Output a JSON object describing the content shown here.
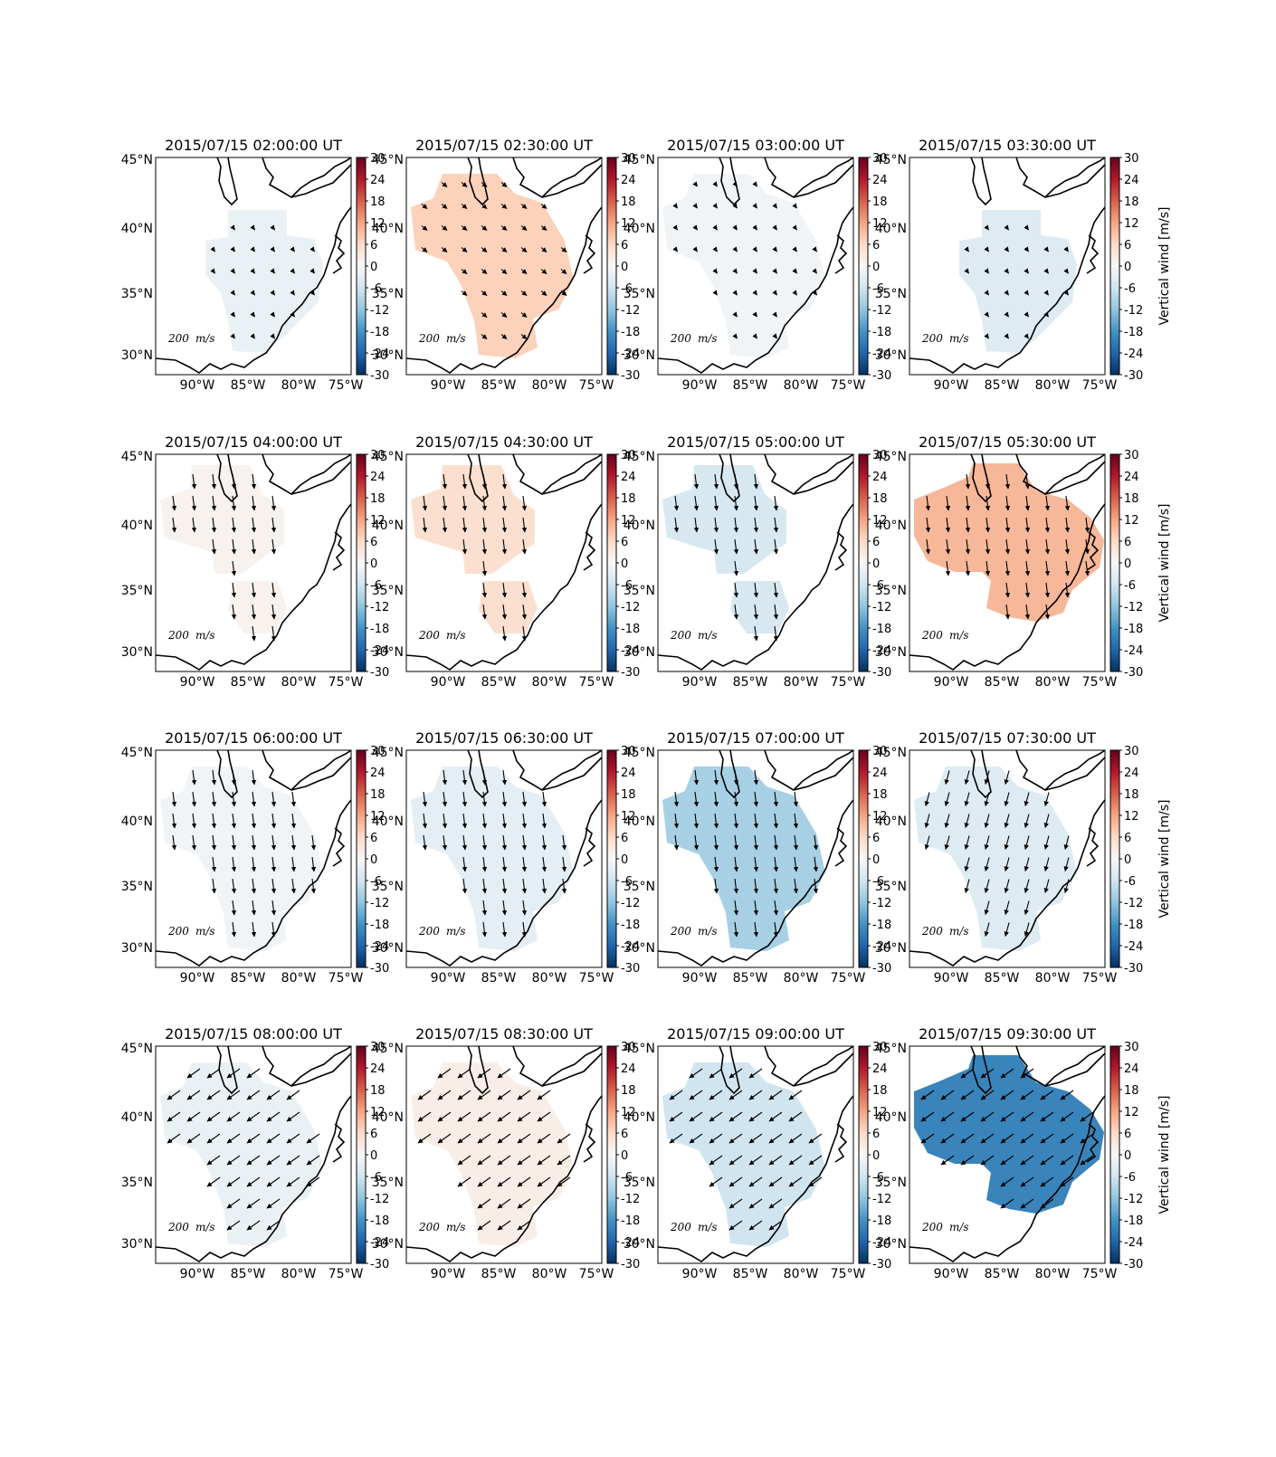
{
  "figure": {
    "colorbar_label": "Vertical wind [m/s]",
    "colorbar_ticks": [
      30,
      24,
      18,
      12,
      6,
      0,
      -6,
      -12,
      -18,
      -24,
      -30
    ],
    "lat_labels": [
      "45°N",
      "40°N",
      "35°N",
      "30°N"
    ],
    "lon_labels": [
      "90°W",
      "85°W",
      "80°W",
      "75°W"
    ],
    "scale_label": "200",
    "scale_unit": "m/s",
    "colormap": [
      "#053061",
      "#2166ac",
      "#4393c3",
      "#92c5de",
      "#d1e5f0",
      "#f7f7f7",
      "#fddbc7",
      "#f4a582",
      "#d6604d",
      "#b2182b",
      "#67001f"
    ]
  },
  "panels": [
    {
      "title": "2015/07/15 02:00:00 UT",
      "value": -2,
      "region": "tall",
      "arrow": "small"
    },
    {
      "title": "2015/07/15 02:30:00 UT",
      "value": 7,
      "region": "big",
      "arrow": "med"
    },
    {
      "title": "2015/07/15 03:00:00 UT",
      "value": -1,
      "region": "big",
      "arrow": "small"
    },
    {
      "title": "2015/07/15 03:30:00 UT",
      "value": -4,
      "region": "tall",
      "arrow": "small"
    },
    {
      "title": "2015/07/15 04:00:00 UT",
      "value": 1,
      "region": "split",
      "arrow": "down"
    },
    {
      "title": "2015/07/15 04:30:00 UT",
      "value": 5,
      "region": "split",
      "arrow": "down"
    },
    {
      "title": "2015/07/15 05:00:00 UT",
      "value": -5,
      "region": "split",
      "arrow": "down"
    },
    {
      "title": "2015/07/15 05:30:00 UT",
      "value": 10,
      "region": "wide",
      "arrow": "down"
    },
    {
      "title": "2015/07/15 06:00:00 UT",
      "value": -1,
      "region": "big",
      "arrow": "down"
    },
    {
      "title": "2015/07/15 06:30:00 UT",
      "value": -3,
      "region": "big",
      "arrow": "down"
    },
    {
      "title": "2015/07/15 07:00:00 UT",
      "value": -10,
      "region": "big",
      "arrow": "down"
    },
    {
      "title": "2015/07/15 07:30:00 UT",
      "value": -4,
      "region": "big",
      "arrow": "downleft"
    },
    {
      "title": "2015/07/15 08:00:00 UT",
      "value": -2,
      "region": "big",
      "arrow": "sw"
    },
    {
      "title": "2015/07/15 08:30:00 UT",
      "value": 2,
      "region": "big",
      "arrow": "sw"
    },
    {
      "title": "2015/07/15 09:00:00 UT",
      "value": -6,
      "region": "big",
      "arrow": "sw"
    },
    {
      "title": "2015/07/15 09:30:00 UT",
      "value": -20,
      "region": "wide",
      "arrow": "sw"
    }
  ]
}
